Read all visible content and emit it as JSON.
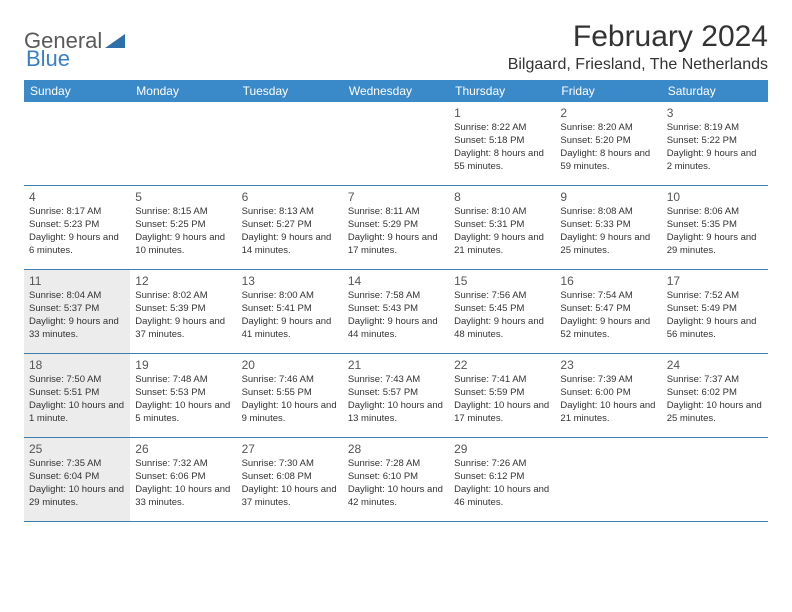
{
  "logo": {
    "part1": "General",
    "part2": "Blue"
  },
  "title": "February 2024",
  "location": "Bilgaard, Friesland, The Netherlands",
  "colors": {
    "header_bg": "#3a89c9",
    "accent": "#3a7fc4",
    "grey_cell": "#ececec",
    "border": "#3a7fb0",
    "text": "#333333",
    "logo_grey": "#5a5a5a"
  },
  "dayNames": [
    "Sunday",
    "Monday",
    "Tuesday",
    "Wednesday",
    "Thursday",
    "Friday",
    "Saturday"
  ],
  "weeks": [
    [
      {
        "empty": true
      },
      {
        "empty": true
      },
      {
        "empty": true
      },
      {
        "empty": true
      },
      {
        "num": "1",
        "sunrise": "8:22 AM",
        "sunset": "5:18 PM",
        "daylight": "8 hours and 55 minutes."
      },
      {
        "num": "2",
        "sunrise": "8:20 AM",
        "sunset": "5:20 PM",
        "daylight": "8 hours and 59 minutes."
      },
      {
        "num": "3",
        "sunrise": "8:19 AM",
        "sunset": "5:22 PM",
        "daylight": "9 hours and 2 minutes."
      }
    ],
    [
      {
        "num": "4",
        "sunrise": "8:17 AM",
        "sunset": "5:23 PM",
        "daylight": "9 hours and 6 minutes."
      },
      {
        "num": "5",
        "sunrise": "8:15 AM",
        "sunset": "5:25 PM",
        "daylight": "9 hours and 10 minutes."
      },
      {
        "num": "6",
        "sunrise": "8:13 AM",
        "sunset": "5:27 PM",
        "daylight": "9 hours and 14 minutes."
      },
      {
        "num": "7",
        "sunrise": "8:11 AM",
        "sunset": "5:29 PM",
        "daylight": "9 hours and 17 minutes."
      },
      {
        "num": "8",
        "sunrise": "8:10 AM",
        "sunset": "5:31 PM",
        "daylight": "9 hours and 21 minutes."
      },
      {
        "num": "9",
        "sunrise": "8:08 AM",
        "sunset": "5:33 PM",
        "daylight": "9 hours and 25 minutes."
      },
      {
        "num": "10",
        "sunrise": "8:06 AM",
        "sunset": "5:35 PM",
        "daylight": "9 hours and 29 minutes."
      }
    ],
    [
      {
        "num": "11",
        "grey": true,
        "sunrise": "8:04 AM",
        "sunset": "5:37 PM",
        "daylight": "9 hours and 33 minutes."
      },
      {
        "num": "12",
        "sunrise": "8:02 AM",
        "sunset": "5:39 PM",
        "daylight": "9 hours and 37 minutes."
      },
      {
        "num": "13",
        "sunrise": "8:00 AM",
        "sunset": "5:41 PM",
        "daylight": "9 hours and 41 minutes."
      },
      {
        "num": "14",
        "sunrise": "7:58 AM",
        "sunset": "5:43 PM",
        "daylight": "9 hours and 44 minutes."
      },
      {
        "num": "15",
        "sunrise": "7:56 AM",
        "sunset": "5:45 PM",
        "daylight": "9 hours and 48 minutes."
      },
      {
        "num": "16",
        "sunrise": "7:54 AM",
        "sunset": "5:47 PM",
        "daylight": "9 hours and 52 minutes."
      },
      {
        "num": "17",
        "sunrise": "7:52 AM",
        "sunset": "5:49 PM",
        "daylight": "9 hours and 56 minutes."
      }
    ],
    [
      {
        "num": "18",
        "grey": true,
        "sunrise": "7:50 AM",
        "sunset": "5:51 PM",
        "daylight": "10 hours and 1 minute."
      },
      {
        "num": "19",
        "sunrise": "7:48 AM",
        "sunset": "5:53 PM",
        "daylight": "10 hours and 5 minutes."
      },
      {
        "num": "20",
        "sunrise": "7:46 AM",
        "sunset": "5:55 PM",
        "daylight": "10 hours and 9 minutes."
      },
      {
        "num": "21",
        "sunrise": "7:43 AM",
        "sunset": "5:57 PM",
        "daylight": "10 hours and 13 minutes."
      },
      {
        "num": "22",
        "sunrise": "7:41 AM",
        "sunset": "5:59 PM",
        "daylight": "10 hours and 17 minutes."
      },
      {
        "num": "23",
        "sunrise": "7:39 AM",
        "sunset": "6:00 PM",
        "daylight": "10 hours and 21 minutes."
      },
      {
        "num": "24",
        "sunrise": "7:37 AM",
        "sunset": "6:02 PM",
        "daylight": "10 hours and 25 minutes."
      }
    ],
    [
      {
        "num": "25",
        "grey": true,
        "sunrise": "7:35 AM",
        "sunset": "6:04 PM",
        "daylight": "10 hours and 29 minutes."
      },
      {
        "num": "26",
        "sunrise": "7:32 AM",
        "sunset": "6:06 PM",
        "daylight": "10 hours and 33 minutes."
      },
      {
        "num": "27",
        "sunrise": "7:30 AM",
        "sunset": "6:08 PM",
        "daylight": "10 hours and 37 minutes."
      },
      {
        "num": "28",
        "sunrise": "7:28 AM",
        "sunset": "6:10 PM",
        "daylight": "10 hours and 42 minutes."
      },
      {
        "num": "29",
        "sunrise": "7:26 AM",
        "sunset": "6:12 PM",
        "daylight": "10 hours and 46 minutes."
      },
      {
        "empty": true
      },
      {
        "empty": true
      }
    ]
  ],
  "labels": {
    "sunrise": "Sunrise:",
    "sunset": "Sunset:",
    "daylight": "Daylight:"
  }
}
